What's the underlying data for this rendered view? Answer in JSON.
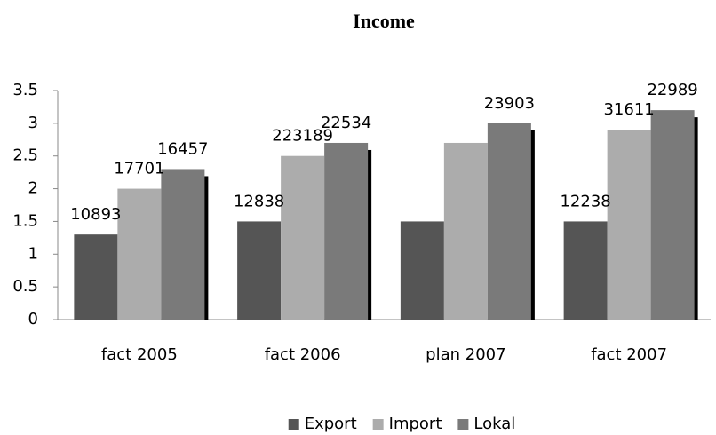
{
  "chart_data": {
    "type": "bar",
    "title": "Income",
    "categories": [
      "fact 2005",
      "fact 2006",
      "plan 2007",
      "fact 2007"
    ],
    "series": [
      {
        "name": "Export",
        "color": "#555555",
        "values": [
          1.3,
          1.5,
          1.5,
          1.5
        ],
        "value_labels": [
          "10893",
          "12838",
          null,
          "12238"
        ]
      },
      {
        "name": "Import",
        "color": "#acacac",
        "values": [
          2.0,
          2.5,
          2.7,
          2.9
        ],
        "value_labels": [
          "17701",
          "223189",
          null,
          "31611"
        ]
      },
      {
        "name": "Lokal",
        "color": "#7a7a7a",
        "values": [
          2.3,
          2.7,
          3.0,
          3.2
        ],
        "value_labels": [
          "16457",
          "22534",
          "23903",
          "22989"
        ]
      }
    ],
    "ylim": [
      0,
      3.5
    ],
    "yticks": [
      0,
      0.5,
      1,
      1.5,
      2,
      2.5,
      3,
      3.5
    ],
    "grid": false,
    "legend": "bottom"
  }
}
